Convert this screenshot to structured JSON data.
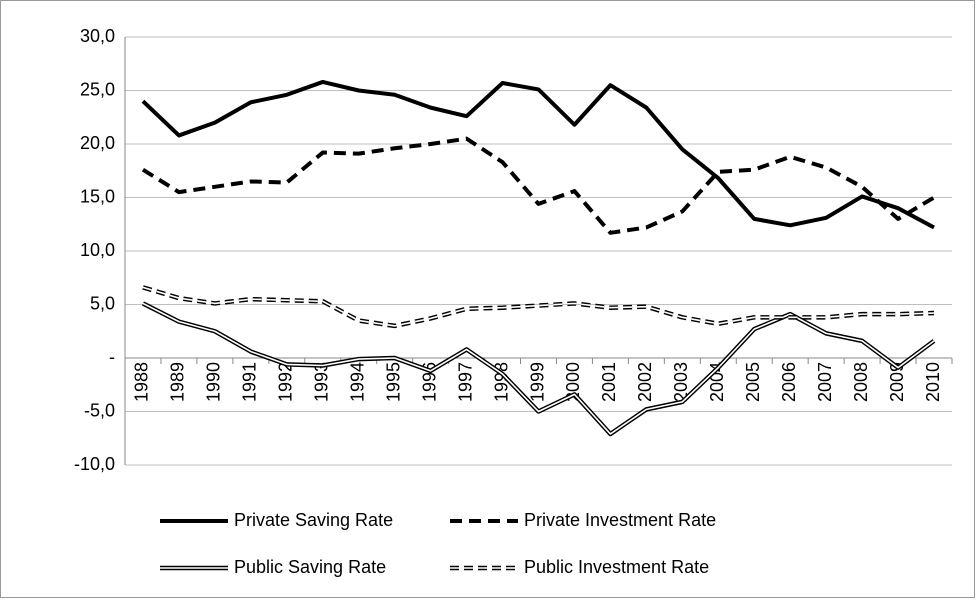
{
  "chart_data": {
    "type": "line",
    "categories": [
      "1988",
      "1989",
      "1990",
      "1991",
      "1992",
      "1993",
      "1994",
      "1995",
      "1996",
      "1997",
      "1998",
      "1999",
      "2000",
      "2001",
      "2002",
      "2003",
      "2004",
      "2005",
      "2006",
      "2007",
      "2008",
      "2009",
      "2010"
    ],
    "series": [
      {
        "name": "Private Saving Rate",
        "color": "#000000",
        "style": "solid",
        "double": false,
        "values": [
          24.0,
          20.8,
          22.0,
          23.9,
          24.6,
          25.8,
          25.0,
          24.6,
          23.4,
          22.6,
          25.7,
          25.1,
          21.8,
          25.5,
          23.4,
          19.5,
          16.8,
          13.0,
          12.4,
          13.1,
          15.1,
          14.0,
          12.2
        ]
      },
      {
        "name": "Private Investment Rate",
        "color": "#000000",
        "style": "dashed",
        "double": false,
        "values": [
          17.6,
          15.5,
          16.0,
          16.5,
          16.4,
          19.2,
          19.1,
          19.6,
          20.0,
          20.5,
          18.3,
          14.4,
          15.6,
          11.7,
          12.2,
          13.7,
          17.4,
          17.6,
          18.8,
          17.8,
          16.0,
          13.0,
          15.0
        ]
      },
      {
        "name": "Public Saving Rate",
        "color": "#000000",
        "style": "solid",
        "double": true,
        "values": [
          5.1,
          3.4,
          2.5,
          0.6,
          -0.6,
          -0.7,
          -0.1,
          0.0,
          -1.2,
          0.8,
          -1.5,
          -5.0,
          -3.4,
          -7.1,
          -4.8,
          -4.1,
          -0.9,
          2.7,
          4.1,
          2.3,
          1.6,
          -0.9,
          1.6
        ]
      },
      {
        "name": "Public Investment Rate",
        "color": "#000000",
        "style": "dashed",
        "double": true,
        "values": [
          6.6,
          5.6,
          5.1,
          5.5,
          5.4,
          5.3,
          3.5,
          3.0,
          3.7,
          4.6,
          4.7,
          4.9,
          5.1,
          4.7,
          4.8,
          3.8,
          3.2,
          3.8,
          3.8,
          3.8,
          4.1,
          4.1,
          4.2
        ]
      }
    ],
    "ylim": [
      -10,
      30
    ],
    "yticks": [
      {
        "value": 30,
        "label": "30,0"
      },
      {
        "value": 25,
        "label": "25,0"
      },
      {
        "value": 20,
        "label": "20,0"
      },
      {
        "value": 15,
        "label": "15,0"
      },
      {
        "value": 10,
        "label": "10,0"
      },
      {
        "value": 5,
        "label": "5,0"
      },
      {
        "value": 0,
        "label": "-"
      },
      {
        "value": -5,
        "label": "-5,0"
      },
      {
        "value": -10,
        "label": "-10,0"
      }
    ],
    "grid": true,
    "legend": "bottom"
  }
}
